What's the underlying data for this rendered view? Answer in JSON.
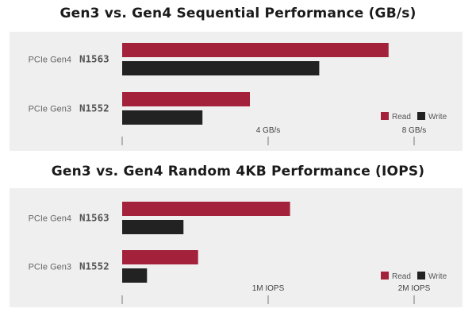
{
  "colors": {
    "read": "#a3213a",
    "write": "#222222",
    "axis": "#777777"
  },
  "chart_data": [
    {
      "type": "bar",
      "orientation": "horizontal",
      "title": "Gen3 vs. Gen4 Sequential Performance (GB/s)",
      "groups": [
        {
          "gen": "PCIe Gen4",
          "model": "N1563"
        },
        {
          "gen": "PCIe Gen3",
          "model": "N1552"
        }
      ],
      "series": [
        {
          "name": "Read",
          "values": [
            7.3,
            3.5
          ]
        },
        {
          "name": "Write",
          "values": [
            5.4,
            2.2
          ]
        }
      ],
      "xlim": [
        0,
        8
      ],
      "ticks": [
        {
          "value": 0,
          "label": ""
        },
        {
          "value": 4,
          "label": "4 GB/s"
        },
        {
          "value": 8,
          "label": "8 GB/s"
        }
      ],
      "legend": "bottom-right"
    },
    {
      "type": "bar",
      "orientation": "horizontal",
      "title": "Gen3 vs. Gen4 Random 4KB Performance (IOPS)",
      "groups": [
        {
          "gen": "PCIe Gen4",
          "model": "N1563"
        },
        {
          "gen": "PCIe Gen3",
          "model": "N1552"
        }
      ],
      "series": [
        {
          "name": "Read",
          "values": [
            1.15,
            0.52
          ]
        },
        {
          "name": "Write",
          "values": [
            0.42,
            0.17
          ]
        }
      ],
      "xlim": [
        0,
        2
      ],
      "ticks": [
        {
          "value": 0,
          "label": ""
        },
        {
          "value": 1,
          "label": "1M IOPS"
        },
        {
          "value": 2,
          "label": "2M IOPS"
        }
      ],
      "legend": "bottom-right"
    }
  ]
}
